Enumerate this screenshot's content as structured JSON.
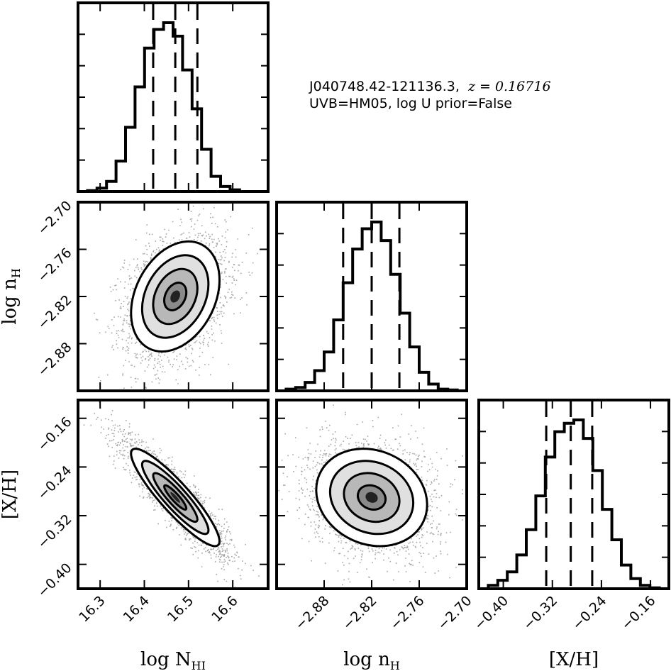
{
  "annotation": {
    "line1_object": "J040748.42-121136.3,",
    "line1_z": "z = 0.16716",
    "line2": "UVB=HM05, log U prior=False"
  },
  "chart_data": {
    "type": "corner",
    "parameters": [
      {
        "key": "logNHI",
        "label": "log N",
        "label_sub": "HI",
        "range": [
          16.25,
          16.68
        ],
        "ticks": [
          16.3,
          16.4,
          16.5,
          16.6
        ],
        "tick_labels": [
          "16.3",
          "16.4",
          "16.5",
          "16.6"
        ],
        "quantiles": [
          16.42,
          16.47,
          16.52
        ],
        "histogram": {
          "edges": [
            16.25,
            16.2715,
            16.293,
            16.3145,
            16.336,
            16.3575,
            16.379,
            16.4005,
            16.422,
            16.4435,
            16.465,
            16.4865,
            16.508,
            16.5295,
            16.551,
            16.5725,
            16.594,
            16.6155,
            16.637,
            16.6585,
            16.68
          ],
          "counts": [
            0,
            0.005,
            0.02,
            0.06,
            0.18,
            0.38,
            0.62,
            0.85,
            0.96,
            1.0,
            0.92,
            0.72,
            0.49,
            0.25,
            0.09,
            0.03,
            0.01,
            0,
            0,
            0
          ]
        }
      },
      {
        "key": "lognH",
        "label": "log n",
        "label_sub": "H",
        "range": [
          -2.94,
          -2.7
        ],
        "ticks": [
          -2.88,
          -2.82,
          -2.76,
          -2.7
        ],
        "tick_labels": [
          "−2.88",
          "−2.82",
          "−2.76",
          "−2.70"
        ],
        "quantiles": [
          -2.856,
          -2.82,
          -2.785
        ],
        "histogram": {
          "edges": [
            -2.94,
            -2.928,
            -2.916,
            -2.904,
            -2.892,
            -2.88,
            -2.868,
            -2.856,
            -2.844,
            -2.832,
            -2.82,
            -2.808,
            -2.796,
            -2.784,
            -2.772,
            -2.76,
            -2.748,
            -2.736,
            -2.724,
            -2.712,
            -2.7
          ],
          "counts": [
            0,
            0.01,
            0.02,
            0.05,
            0.12,
            0.23,
            0.42,
            0.64,
            0.84,
            0.96,
            1.0,
            0.89,
            0.69,
            0.46,
            0.26,
            0.11,
            0.04,
            0.01,
            0.005,
            0
          ]
        }
      },
      {
        "key": "XH",
        "label": "[X/H]",
        "label_sub": "",
        "range": [
          -0.44,
          -0.13
        ],
        "ticks": [
          -0.4,
          -0.32,
          -0.24,
          -0.16
        ],
        "tick_labels": [
          "−0.40",
          "−0.32",
          "−0.24",
          "−0.16"
        ],
        "quantiles": [
          -0.33,
          -0.29,
          -0.255
        ],
        "histogram": {
          "edges": [
            -0.44,
            -0.4245,
            -0.409,
            -0.3935,
            -0.378,
            -0.3625,
            -0.347,
            -0.3315,
            -0.316,
            -0.3005,
            -0.285,
            -0.2695,
            -0.254,
            -0.2385,
            -0.223,
            -0.2075,
            -0.192,
            -0.1765,
            -0.161,
            -0.1455,
            -0.13
          ],
          "counts": [
            0,
            0.02,
            0.05,
            0.1,
            0.2,
            0.35,
            0.55,
            0.78,
            0.93,
            0.98,
            1.0,
            0.89,
            0.7,
            0.47,
            0.29,
            0.14,
            0.06,
            0.02,
            0.005,
            0
          ]
        }
      }
    ],
    "pairs": [
      {
        "x": "logNHI",
        "y": "lognH",
        "mean": [
          16.47,
          -2.82
        ],
        "sd": [
          0.05,
          0.035
        ],
        "corr": 0.3
      },
      {
        "x": "logNHI",
        "y": "XH",
        "mean": [
          16.47,
          -0.29
        ],
        "sd": [
          0.05,
          0.04
        ],
        "corr": -0.9
      },
      {
        "x": "lognH",
        "y": "XH",
        "mean": [
          -2.82,
          -0.29
        ],
        "sd": [
          0.035,
          0.04
        ],
        "corr": -0.15
      }
    ],
    "contour_levels_sigma": [
      0.5,
      1.0,
      1.5,
      2.0
    ]
  }
}
